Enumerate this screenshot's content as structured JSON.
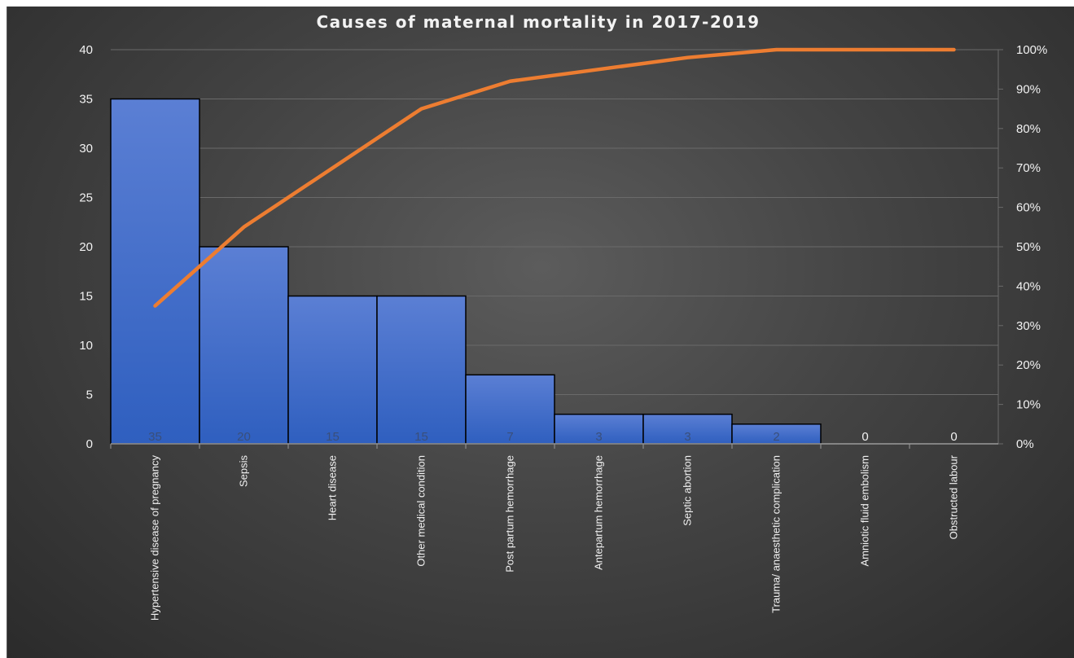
{
  "chart_data": {
    "type": "bar",
    "title": "Causes of maternal mortality in 2017-2019",
    "categories": [
      "Hypertensive disease of pregnancy",
      "Sepsis",
      "Heart disease",
      "Other medical condition",
      "Post partum hemorrhage",
      "Antepartum hemorrhage",
      "Septic abortion",
      "Trauma/ anaesthetic complication",
      "Amniotic fluid embolism",
      "Obstructed labour"
    ],
    "values": [
      35,
      20,
      15,
      15,
      7,
      3,
      3,
      2,
      0,
      0
    ],
    "data_labels": [
      "35",
      "20",
      "15",
      "15",
      "7",
      "3",
      "3",
      "2",
      "0",
      "0"
    ],
    "cumulative_percent": [
      35,
      55,
      70,
      85,
      92,
      95,
      98,
      100,
      100,
      100
    ],
    "ylim": [
      0,
      40
    ],
    "y_ticks": [
      0,
      5,
      10,
      15,
      20,
      25,
      30,
      35,
      40
    ],
    "y2lim": [
      0,
      100
    ],
    "y2_ticks": [
      "0%",
      "10%",
      "20%",
      "30%",
      "40%",
      "50%",
      "60%",
      "70%",
      "80%",
      "90%",
      "100%"
    ],
    "grid": true,
    "legend": "none",
    "colors": {
      "bar_top": "#5b7fd4",
      "bar_bottom": "#2f5fbf",
      "line": "#ed7d31",
      "grid": "#6a6a6a",
      "text": "#f2f2f2"
    }
  }
}
